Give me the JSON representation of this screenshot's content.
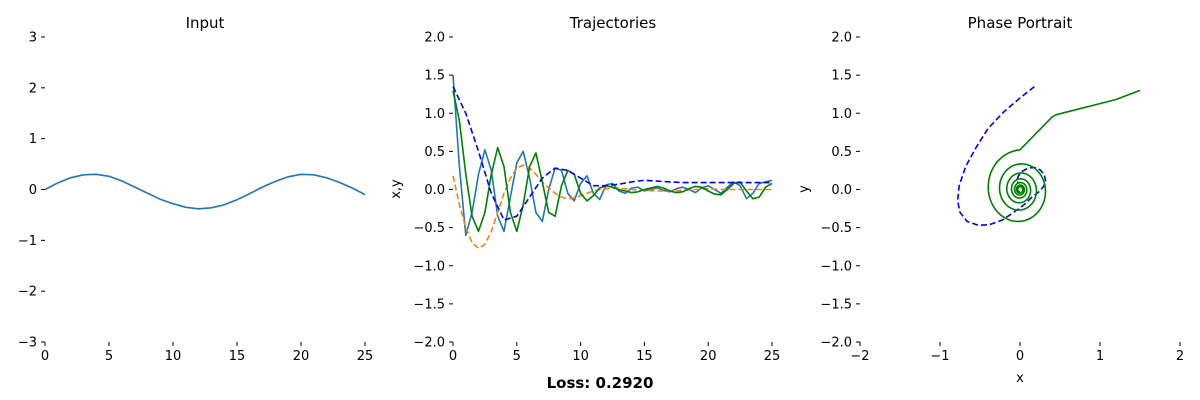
{
  "footer": {
    "loss_text": "Loss: 0.2920"
  },
  "chart_data": [
    {
      "type": "line",
      "title": "Input",
      "xlabel": "",
      "ylabel": "",
      "xlim": [
        0,
        25
      ],
      "ylim": [
        -3,
        3
      ],
      "xticks": [
        0,
        5,
        10,
        15,
        20,
        25
      ],
      "yticks": [
        -3,
        -2,
        -1,
        0,
        1,
        2,
        3
      ],
      "grid": false,
      "series": [
        {
          "color": "#1f77b4",
          "dash": "solid",
          "x": [
            0,
            1,
            2,
            3,
            4,
            5,
            6,
            7,
            8,
            9,
            10,
            11,
            12,
            13,
            14,
            15,
            16,
            17,
            18,
            19,
            20,
            21,
            22,
            23,
            24,
            25
          ],
          "y": [
            0,
            0.13,
            0.23,
            0.29,
            0.3,
            0.26,
            0.17,
            0.05,
            -0.07,
            -0.19,
            -0.28,
            -0.35,
            -0.38,
            -0.36,
            -0.3,
            -0.2,
            -0.08,
            0.05,
            0.16,
            0.25,
            0.3,
            0.29,
            0.23,
            0.14,
            0.03,
            -0.1
          ]
        }
      ]
    },
    {
      "type": "line",
      "title": "Trajectories",
      "xlabel": "",
      "ylabel": "x,y",
      "xlim": [
        0,
        25
      ],
      "ylim": [
        -2,
        2
      ],
      "xticks": [
        0,
        5,
        10,
        15,
        20,
        25
      ],
      "yticks": [
        -2.0,
        -1.5,
        -1.0,
        -0.5,
        0.0,
        0.5,
        1.0,
        1.5,
        2.0
      ],
      "grid": false,
      "series": [
        {
          "color": "#1f77b4",
          "dash": "solid",
          "x": [
            0,
            0.5,
            1,
            1.5,
            2,
            2.5,
            3,
            3.5,
            4,
            4.5,
            5,
            5.5,
            6,
            6.5,
            7,
            7.5,
            8,
            8.5,
            9,
            9.5,
            10,
            10.5,
            11,
            11.5,
            12,
            12.5,
            13,
            13.5,
            14,
            14.5,
            15,
            15.5,
            16,
            16.5,
            17,
            17.5,
            18,
            18.5,
            19,
            19.5,
            20,
            20.5,
            21,
            21.5,
            22,
            22.5,
            23,
            23.5,
            24,
            24.5,
            25
          ],
          "y": [
            1.5,
            0.3,
            -0.6,
            -0.3,
            0.2,
            0.52,
            0.25,
            -0.35,
            -0.55,
            -0.1,
            0.35,
            0.5,
            0.15,
            -0.3,
            -0.42,
            0.0,
            0.28,
            0.25,
            -0.05,
            -0.15,
            0.08,
            0.18,
            -0.05,
            -0.13,
            0.06,
            0.08,
            -0.02,
            -0.05,
            0.02,
            0.03,
            -0.02,
            0.0,
            0.02,
            -0.01,
            -0.03,
            0.01,
            0.03,
            0.0,
            -0.04,
            0.02,
            0.05,
            0.0,
            -0.05,
            0.03,
            0.1,
            0.05,
            -0.12,
            -0.05,
            0.08,
            0.1,
            0.12
          ]
        },
        {
          "color": "#ff7f0e",
          "dash": "dashed",
          "x": [
            0,
            0.5,
            1,
            1.5,
            2,
            2.5,
            3,
            3.5,
            4,
            4.5,
            5,
            5.5,
            6,
            6.5,
            7,
            7.5,
            8,
            8.5,
            9,
            9.5,
            10,
            10.5,
            11,
            11.5,
            12,
            13,
            14,
            15,
            16,
            17,
            18,
            19,
            20,
            21,
            22,
            23,
            24,
            25
          ],
          "y": [
            0.18,
            -0.2,
            -0.5,
            -0.7,
            -0.77,
            -0.72,
            -0.55,
            -0.3,
            -0.05,
            0.15,
            0.28,
            0.32,
            0.28,
            0.2,
            0.1,
            0.02,
            -0.05,
            -0.1,
            -0.12,
            -0.11,
            -0.08,
            -0.05,
            -0.02,
            0.0,
            0.01,
            0.02,
            0.0,
            -0.01,
            -0.02,
            -0.02,
            -0.01,
            0.0,
            0.01,
            0.0,
            0.0,
            0.0,
            0.0,
            0.0
          ]
        },
        {
          "color": "#008000",
          "dash": "solid",
          "x": [
            0,
            0.5,
            1,
            1.5,
            2,
            2.5,
            3,
            3.5,
            4,
            4.5,
            5,
            5.5,
            6,
            6.5,
            7,
            7.5,
            8,
            8.5,
            9,
            9.5,
            10,
            10.5,
            11,
            11.5,
            12,
            12.5,
            13,
            13.5,
            14,
            14.5,
            15,
            15.5,
            16,
            16.5,
            17,
            17.5,
            18,
            18.5,
            19,
            19.5,
            20,
            20.5,
            21,
            21.5,
            22,
            22.5,
            23,
            23.5,
            24,
            24.5,
            25
          ],
          "y": [
            1.3,
            0.9,
            0.2,
            -0.35,
            -0.55,
            -0.3,
            0.2,
            0.55,
            0.3,
            -0.3,
            -0.55,
            -0.2,
            0.3,
            0.48,
            0.1,
            -0.3,
            -0.35,
            0.05,
            0.25,
            0.2,
            -0.05,
            -0.15,
            -0.08,
            0.02,
            0.05,
            0.03,
            0.0,
            -0.02,
            -0.04,
            -0.03,
            0.0,
            0.02,
            0.04,
            0.02,
            -0.02,
            -0.04,
            -0.03,
            0.01,
            0.04,
            0.03,
            -0.02,
            -0.06,
            -0.07,
            0.0,
            0.08,
            0.1,
            -0.02,
            -0.12,
            -0.1,
            0.03,
            0.08
          ]
        },
        {
          "color": "#0000ff",
          "dash": "dashed",
          "x": [
            0,
            1,
            2,
            3,
            4,
            5,
            6,
            7,
            8,
            9,
            10,
            11,
            12,
            13,
            14,
            15,
            16,
            17,
            18,
            19,
            20,
            21,
            22,
            23,
            24,
            25
          ],
          "y": [
            1.35,
            1.0,
            0.5,
            -0.05,
            -0.4,
            -0.35,
            -0.1,
            0.15,
            0.28,
            0.25,
            0.15,
            0.05,
            0.05,
            0.07,
            0.1,
            0.12,
            0.11,
            0.1,
            0.09,
            0.09,
            0.09,
            0.09,
            0.09,
            0.09,
            0.09,
            0.09
          ]
        }
      ]
    },
    {
      "type": "line",
      "title": "Phase Portrait",
      "xlabel": "x",
      "ylabel": "y",
      "xlim": [
        -2,
        2
      ],
      "ylim": [
        -2,
        2
      ],
      "xticks": [
        -2,
        -1,
        0,
        1,
        2
      ],
      "yticks": [
        -2.0,
        -1.5,
        -1.0,
        -0.5,
        0.0,
        0.5,
        1.0,
        1.5,
        2.0
      ],
      "grid": false,
      "series": [
        {
          "color": "#0000ff",
          "dash": "dashed",
          "x": [
            0.18,
            0.0,
            -0.2,
            -0.4,
            -0.55,
            -0.68,
            -0.76,
            -0.78,
            -0.75,
            -0.66,
            -0.52,
            -0.38,
            -0.22,
            -0.08,
            0.05,
            0.15,
            0.25,
            0.3,
            0.32,
            0.3,
            0.25,
            0.18,
            0.1,
            0.03,
            -0.02,
            -0.04,
            -0.04,
            -0.02
          ],
          "y": [
            1.35,
            1.2,
            1.02,
            0.8,
            0.55,
            0.3,
            0.05,
            -0.15,
            -0.3,
            -0.42,
            -0.47,
            -0.46,
            -0.4,
            -0.3,
            -0.2,
            -0.1,
            -0.02,
            0.05,
            0.12,
            0.2,
            0.26,
            0.29,
            0.28,
            0.24,
            0.18,
            0.12,
            0.1,
            0.09
          ]
        }
      ],
      "spiral": {
        "color": "#008000",
        "tail_x": [
          1.5,
          1.2,
          0.9,
          0.6,
          0.45,
          0.4
        ],
        "tail_y": [
          1.3,
          1.18,
          1.1,
          1.02,
          0.98,
          0.95
        ],
        "center_x": 0.0,
        "center_y": 0.0,
        "radius_start": 0.52,
        "radius_end": 0.03,
        "turns": 6.5,
        "x_aspect": 0.85
      }
    }
  ]
}
